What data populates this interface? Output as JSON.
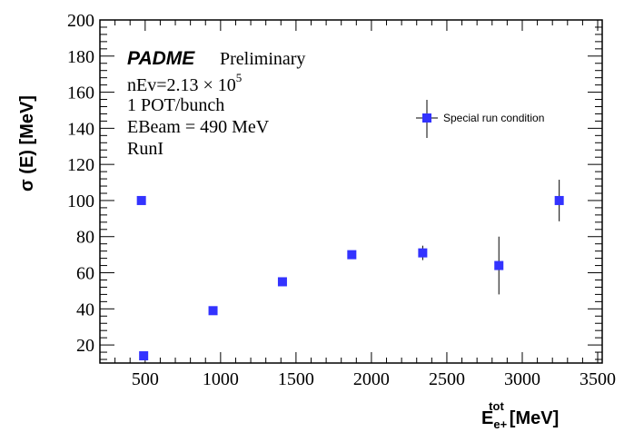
{
  "chart_data": {
    "type": "scatter",
    "title": "",
    "xlabel": "E",
    "xlabel_sup": "tot",
    "xlabel_sub": "e+",
    "xlabel_unit": "[MeV]",
    "ylabel": "σ (E) [MeV]",
    "xlim": [
      200,
      3530
    ],
    "ylim": [
      10,
      200
    ],
    "x_ticks": [
      500,
      1000,
      1500,
      2000,
      2500,
      3000,
      3500
    ],
    "y_ticks": [
      20,
      40,
      60,
      80,
      100,
      120,
      140,
      160,
      180,
      200
    ],
    "grid": false,
    "legend_position": "top-right",
    "series": [
      {
        "name": "Special run condition",
        "color": "#3333ff",
        "points": [
          {
            "x": 475,
            "y": 100,
            "err": 0
          },
          {
            "x": 490,
            "y": 14,
            "err": 0
          },
          {
            "x": 950,
            "y": 39,
            "err": 0
          },
          {
            "x": 1410,
            "y": 55,
            "err": 0
          },
          {
            "x": 1870,
            "y": 70,
            "err": 0
          },
          {
            "x": 2340,
            "y": 71,
            "err": 4
          },
          {
            "x": 2845,
            "y": 64,
            "err": 16
          },
          {
            "x": 3245,
            "y": 100,
            "err": 11.5
          }
        ]
      }
    ],
    "annotations": {
      "experiment": "PADME",
      "status": "Preliminary",
      "nev_prefix": "nEv=2.13 × 10",
      "nev_exp": "5",
      "pot": "1 POT/bunch",
      "beam": "EBeam = 490 MeV",
      "run": "RunI"
    }
  }
}
